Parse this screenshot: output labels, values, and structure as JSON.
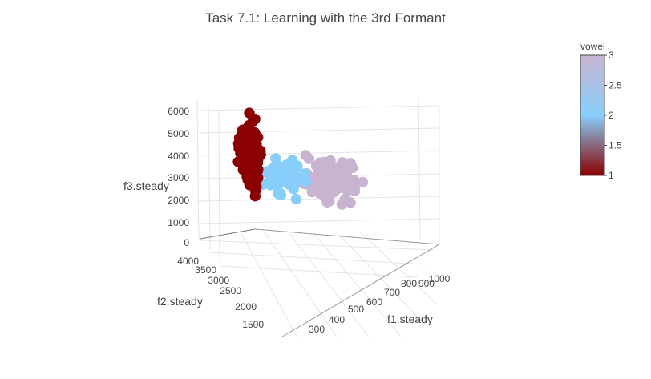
{
  "chart_data": {
    "type": "scatter",
    "title": "Task 7.1: Learning with the 3rd Formant",
    "axes": {
      "x": {
        "label": "f1.steady",
        "ticks": [
          "300",
          "400",
          "500",
          "600",
          "700",
          "800",
          "900",
          "1000"
        ]
      },
      "y": {
        "label": "f2.steady",
        "ticks": [
          "1500",
          "2000",
          "2500",
          "3000",
          "3500",
          "4000"
        ]
      },
      "z": {
        "label": "f3.steady",
        "ticks": [
          "0",
          "1000",
          "2000",
          "3000",
          "4000",
          "5000",
          "6000"
        ]
      }
    },
    "colorbar": {
      "title": "vowel",
      "range": [
        1,
        3
      ],
      "ticks": [
        "1",
        "1.5",
        "2",
        "2.5",
        "3"
      ],
      "colorscale": [
        "#8b0000",
        "#87cefa",
        "#c8b4d0"
      ]
    },
    "grid": true,
    "legend": "right",
    "series": [
      {
        "vowel": 1,
        "color": "#8b0000",
        "f1_range": [
          250,
          450
        ],
        "f2_range": [
          1800,
          3800
        ],
        "f3_range": [
          1200,
          6000
        ],
        "marker_count": 160
      },
      {
        "vowel": 2,
        "color": "#87cefa",
        "f1_range": [
          350,
          700
        ],
        "f2_range": [
          1600,
          3200
        ],
        "f3_range": [
          1500,
          4000
        ],
        "marker_count": 70
      },
      {
        "vowel": 3,
        "color": "#c8b4d0",
        "f1_range": [
          550,
          1000
        ],
        "f2_range": [
          900,
          2200
        ],
        "f3_range": [
          1500,
          4500
        ],
        "marker_count": 110
      }
    ]
  }
}
